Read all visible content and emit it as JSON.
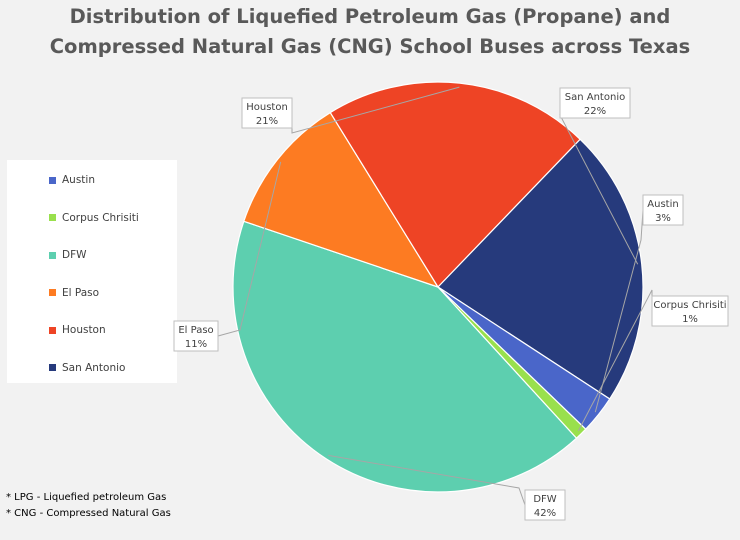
{
  "title_lines": [
    "Distribution of Liquefied Petroleum Gas (Propane) and",
    "Compressed Natural Gas (CNG) School Buses across Texas"
  ],
  "notes": [
    "* LPG - Liquefied petroleum Gas",
    "* CNG - Compressed Natural Gas"
  ],
  "chart_data": {
    "type": "pie",
    "title": "Distribution of Liquefied Petroleum Gas (Propane) and Compressed Natural Gas (CNG) School Buses across Texas",
    "slices": [
      {
        "name": "Austin",
        "value": 3,
        "label": "3%",
        "color": "#4a66c9"
      },
      {
        "name": "Corpus Chrisiti",
        "value": 1,
        "label": "1%",
        "color": "#99e04d"
      },
      {
        "name": "DFW",
        "value": 42,
        "label": "42%",
        "color": "#5dcfaf"
      },
      {
        "name": "El Paso",
        "value": 11,
        "label": "11%",
        "color": "#fd7b22"
      },
      {
        "name": "Houston",
        "value": 21,
        "label": "21%",
        "color": "#ee4425"
      },
      {
        "name": "San Antonio",
        "value": 22,
        "label": "22%",
        "color": "#263a7c"
      }
    ],
    "legend_position": "left"
  }
}
